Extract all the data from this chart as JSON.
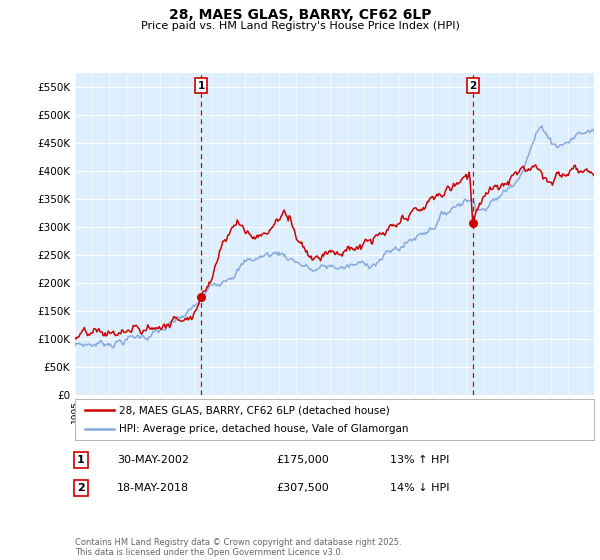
{
  "title": "28, MAES GLAS, BARRY, CF62 6LP",
  "subtitle": "Price paid vs. HM Land Registry's House Price Index (HPI)",
  "red_label": "28, MAES GLAS, BARRY, CF62 6LP (detached house)",
  "blue_label": "HPI: Average price, detached house, Vale of Glamorgan",
  "annotation1_date": "30-MAY-2002",
  "annotation1_price": "£175,000",
  "annotation1_hpi": "13% ↑ HPI",
  "annotation2_date": "18-MAY-2018",
  "annotation2_price": "£307,500",
  "annotation2_hpi": "14% ↓ HPI",
  "footer": "Contains HM Land Registry data © Crown copyright and database right 2025.\nThis data is licensed under the Open Government Licence v3.0.",
  "ylim": [
    0,
    575000
  ],
  "yticks": [
    0,
    50000,
    100000,
    150000,
    200000,
    250000,
    300000,
    350000,
    400000,
    450000,
    500000,
    550000
  ],
  "red_color": "#cc0000",
  "blue_color": "#88aadd",
  "bg_color": "#ddeeff",
  "grid_color": "#ffffff",
  "ann_color": "#cc0000",
  "purchase1_year": 2002.41,
  "purchase1_price": 175000,
  "purchase2_year": 2018.38,
  "purchase2_price": 307500,
  "blue_keypoints": [
    [
      1995.0,
      88000
    ],
    [
      1996.0,
      91000
    ],
    [
      1997.0,
      95000
    ],
    [
      1998.0,
      100000
    ],
    [
      1999.0,
      106000
    ],
    [
      2000.0,
      113000
    ],
    [
      2001.0,
      128000
    ],
    [
      2002.0,
      152000
    ],
    [
      2003.0,
      190000
    ],
    [
      2004.0,
      220000
    ],
    [
      2005.0,
      238000
    ],
    [
      2006.0,
      248000
    ],
    [
      2007.0,
      255000
    ],
    [
      2008.0,
      242000
    ],
    [
      2009.0,
      222000
    ],
    [
      2010.0,
      228000
    ],
    [
      2011.0,
      228000
    ],
    [
      2012.0,
      232000
    ],
    [
      2013.0,
      245000
    ],
    [
      2014.0,
      262000
    ],
    [
      2015.0,
      282000
    ],
    [
      2016.0,
      305000
    ],
    [
      2017.0,
      332000
    ],
    [
      2018.0,
      355000
    ],
    [
      2018.38,
      348000
    ],
    [
      2019.0,
      338000
    ],
    [
      2019.5,
      345000
    ],
    [
      2020.0,
      355000
    ],
    [
      2020.5,
      370000
    ],
    [
      2021.0,
      395000
    ],
    [
      2021.5,
      425000
    ],
    [
      2022.0,
      460000
    ],
    [
      2022.3,
      475000
    ],
    [
      2022.7,
      472000
    ],
    [
      2023.0,
      455000
    ],
    [
      2023.5,
      450000
    ],
    [
      2024.0,
      455000
    ],
    [
      2024.5,
      465000
    ],
    [
      2025.0,
      470000
    ],
    [
      2025.4,
      472000
    ]
  ],
  "red_keypoints": [
    [
      1995.0,
      102000
    ],
    [
      1996.0,
      105000
    ],
    [
      1997.0,
      108000
    ],
    [
      1998.0,
      112000
    ],
    [
      1999.0,
      116000
    ],
    [
      2000.0,
      122000
    ],
    [
      2001.0,
      135000
    ],
    [
      2002.0,
      155000
    ],
    [
      2002.41,
      175000
    ],
    [
      2003.0,
      210000
    ],
    [
      2003.5,
      265000
    ],
    [
      2004.0,
      295000
    ],
    [
      2004.5,
      310000
    ],
    [
      2005.0,
      295000
    ],
    [
      2005.5,
      285000
    ],
    [
      2006.0,
      285000
    ],
    [
      2006.5,
      298000
    ],
    [
      2007.0,
      315000
    ],
    [
      2007.3,
      325000
    ],
    [
      2007.7,
      305000
    ],
    [
      2008.0,
      290000
    ],
    [
      2008.5,
      268000
    ],
    [
      2009.0,
      248000
    ],
    [
      2009.5,
      255000
    ],
    [
      2010.0,
      265000
    ],
    [
      2010.5,
      258000
    ],
    [
      2011.0,
      255000
    ],
    [
      2011.5,
      262000
    ],
    [
      2012.0,
      268000
    ],
    [
      2012.5,
      275000
    ],
    [
      2013.0,
      280000
    ],
    [
      2013.5,
      290000
    ],
    [
      2014.0,
      298000
    ],
    [
      2014.5,
      308000
    ],
    [
      2015.0,
      322000
    ],
    [
      2015.5,
      335000
    ],
    [
      2016.0,
      348000
    ],
    [
      2016.5,
      358000
    ],
    [
      2017.0,
      368000
    ],
    [
      2017.5,
      378000
    ],
    [
      2018.0,
      398000
    ],
    [
      2018.2,
      405000
    ],
    [
      2018.38,
      307500
    ],
    [
      2018.5,
      330000
    ],
    [
      2018.8,
      348000
    ],
    [
      2019.0,
      355000
    ],
    [
      2019.5,
      362000
    ],
    [
      2020.0,
      368000
    ],
    [
      2020.5,
      378000
    ],
    [
      2021.0,
      390000
    ],
    [
      2021.5,
      405000
    ],
    [
      2022.0,
      415000
    ],
    [
      2022.3,
      408000
    ],
    [
      2022.6,
      398000
    ],
    [
      2023.0,
      390000
    ],
    [
      2023.3,
      398000
    ],
    [
      2023.6,
      388000
    ],
    [
      2024.0,
      395000
    ],
    [
      2024.3,
      405000
    ],
    [
      2024.6,
      395000
    ],
    [
      2025.0,
      400000
    ],
    [
      2025.4,
      405000
    ]
  ]
}
